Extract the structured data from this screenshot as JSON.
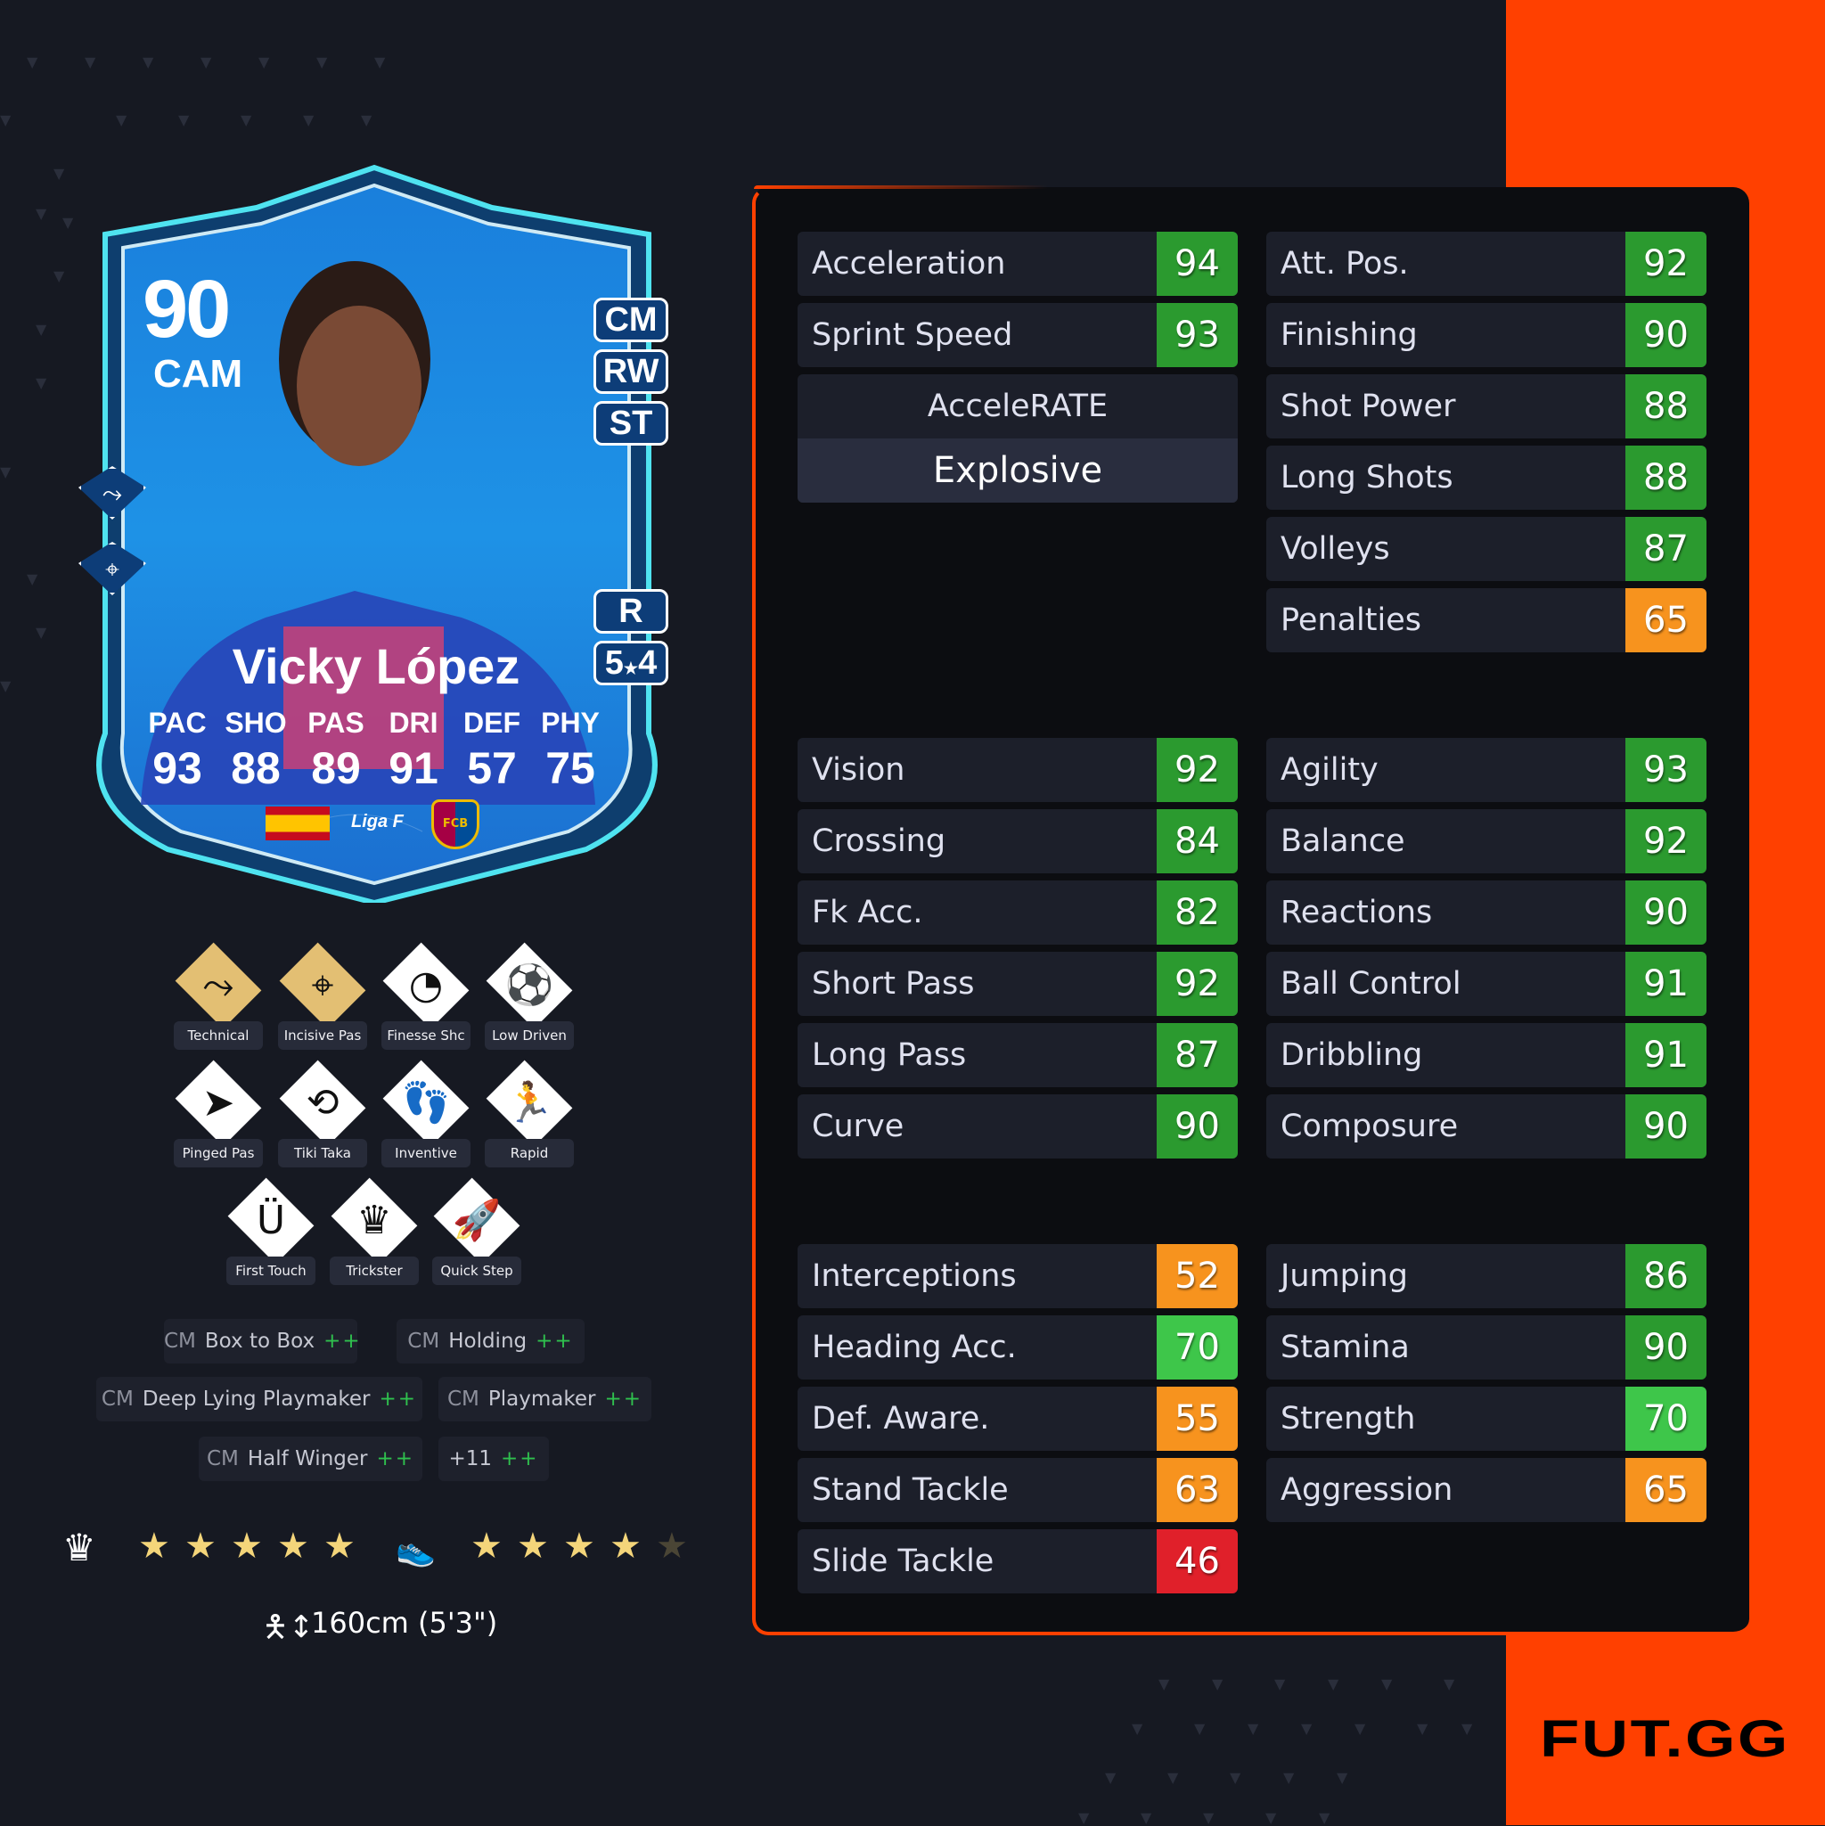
{
  "brand": {
    "logo": "FUT.GG",
    "accent": "#ff4000"
  },
  "card": {
    "rating": "90",
    "position": "CAM",
    "alt_positions": [
      "CM",
      "RW",
      "ST"
    ],
    "foot": "R",
    "skill_weak": {
      "skill": "5",
      "weak": "4",
      "sep": "★"
    },
    "name": "Vicky López",
    "face_stats": [
      {
        "label": "PAC",
        "value": "93"
      },
      {
        "label": "SHO",
        "value": "88"
      },
      {
        "label": "PAS",
        "value": "89"
      },
      {
        "label": "DRI",
        "value": "91"
      },
      {
        "label": "DEF",
        "value": "57"
      },
      {
        "label": "PHY",
        "value": "75"
      }
    ],
    "league": "Liga F",
    "club_badge": "FCB",
    "card_playstyle_icons": [
      "technical-icon",
      "incisive-pass-icon"
    ]
  },
  "playstyles": [
    {
      "label": "Technical",
      "plus": true,
      "icon": "⤳"
    },
    {
      "label": "Incisive Pas",
      "plus": true,
      "icon": "⌖"
    },
    {
      "label": "Finesse Shc",
      "plus": false,
      "icon": "◔"
    },
    {
      "label": "Low Driven",
      "plus": false,
      "icon": "⚽"
    },
    {
      "label": "Pinged Pas",
      "plus": false,
      "icon": "➤"
    },
    {
      "label": "Tiki Taka",
      "plus": false,
      "icon": "⟲"
    },
    {
      "label": "Inventive",
      "plus": false,
      "icon": "👣"
    },
    {
      "label": "Rapid",
      "plus": false,
      "icon": "🏃"
    },
    {
      "label": "First Touch",
      "plus": false,
      "icon": "Ü"
    },
    {
      "label": "Trickster",
      "plus": false,
      "icon": "♛"
    },
    {
      "label": "Quick Step",
      "plus": false,
      "icon": "🚀"
    }
  ],
  "roles": [
    {
      "pos": "CM",
      "name": "Box to Box",
      "plus": "++"
    },
    {
      "pos": "CM",
      "name": "Holding",
      "plus": "++"
    },
    {
      "pos": "CM",
      "name": "Deep Lying Playmaker",
      "plus": "++"
    },
    {
      "pos": "CM",
      "name": "Playmaker",
      "plus": "++"
    },
    {
      "pos": "CM",
      "name": "Half Winger",
      "plus": "++"
    },
    {
      "pos": "",
      "name": "+11",
      "plus": "++"
    }
  ],
  "skill_moves_stars": 5,
  "weak_foot_stars": 4,
  "height": "160cm (5'3\")",
  "accelerate": {
    "title": "AcceleRATE",
    "value": "Explosive"
  },
  "stat_colors": {
    "high": "#2b9a2f",
    "mid": "#3ec64a",
    "low": "#f7931e",
    "bad": "#e0202a"
  },
  "stats": {
    "pace": [
      {
        "label": "Acceleration",
        "value": 94
      },
      {
        "label": "Sprint Speed",
        "value": 93
      }
    ],
    "shooting": [
      {
        "label": "Att. Pos.",
        "value": 92
      },
      {
        "label": "Finishing",
        "value": 90
      },
      {
        "label": "Shot Power",
        "value": 88
      },
      {
        "label": "Long Shots",
        "value": 88
      },
      {
        "label": "Volleys",
        "value": 87
      },
      {
        "label": "Penalties",
        "value": 65
      }
    ],
    "passing": [
      {
        "label": "Vision",
        "value": 92
      },
      {
        "label": "Crossing",
        "value": 84
      },
      {
        "label": "Fk Acc.",
        "value": 82
      },
      {
        "label": "Short Pass",
        "value": 92
      },
      {
        "label": "Long Pass",
        "value": 87
      },
      {
        "label": "Curve",
        "value": 90
      }
    ],
    "dribbling": [
      {
        "label": "Agility",
        "value": 93
      },
      {
        "label": "Balance",
        "value": 92
      },
      {
        "label": "Reactions",
        "value": 90
      },
      {
        "label": "Ball Control",
        "value": 91
      },
      {
        "label": "Dribbling",
        "value": 91
      },
      {
        "label": "Composure",
        "value": 90
      }
    ],
    "defending": [
      {
        "label": "Interceptions",
        "value": 52
      },
      {
        "label": "Heading Acc.",
        "value": 70
      },
      {
        "label": "Def. Aware.",
        "value": 55
      },
      {
        "label": "Stand Tackle",
        "value": 63
      },
      {
        "label": "Slide Tackle",
        "value": 46
      }
    ],
    "physical": [
      {
        "label": "Jumping",
        "value": 86
      },
      {
        "label": "Stamina",
        "value": 90
      },
      {
        "label": "Strength",
        "value": 70
      },
      {
        "label": "Aggression",
        "value": 65
      }
    ]
  }
}
